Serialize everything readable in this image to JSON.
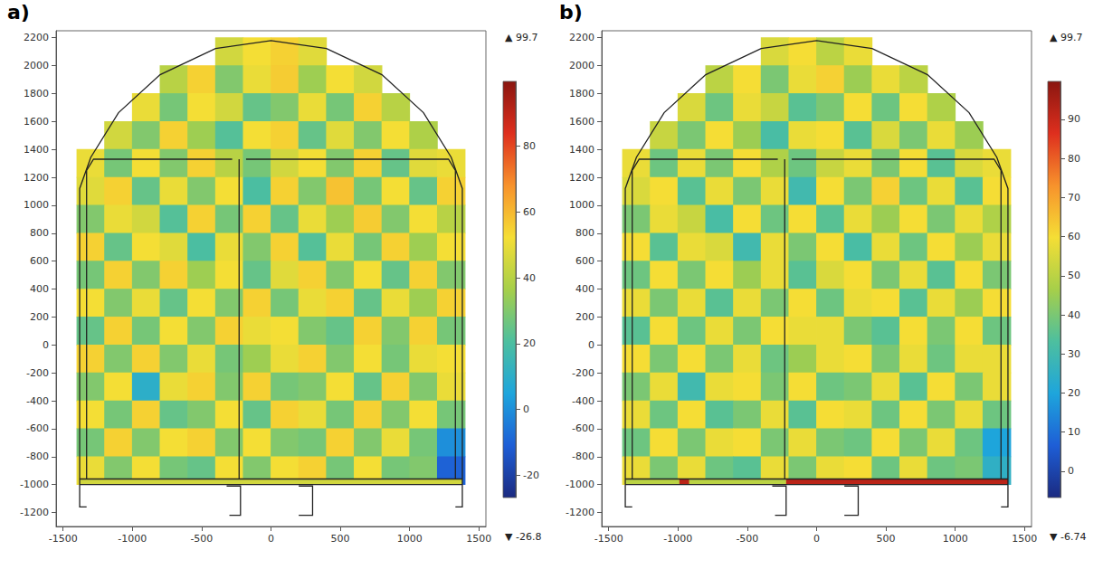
{
  "chart_data": [
    {
      "type": "heatmap",
      "title": "a)",
      "xlim": [
        -1550,
        1550
      ],
      "xticks": [
        -1500,
        -1000,
        -500,
        0,
        500,
        1000,
        1500
      ],
      "ylim": [
        -1300,
        2250
      ],
      "yticks": [
        -1200,
        -1000,
        -800,
        -600,
        -400,
        -200,
        0,
        200,
        400,
        600,
        800,
        1000,
        1200,
        1400,
        1600,
        1800,
        2000,
        2200
      ],
      "x": [
        -1300,
        -1100,
        -900,
        -700,
        -500,
        -300,
        -100,
        100,
        300,
        500,
        700,
        900,
        1100,
        1300
      ],
      "y": [
        2100,
        1900,
        1700,
        1500,
        1300,
        1100,
        900,
        700,
        500,
        300,
        100,
        -100,
        -300,
        -500,
        -700,
        -900
      ],
      "cells": [
        [
          null,
          null,
          null,
          null,
          null,
          45,
          52,
          55,
          48,
          null,
          null,
          null,
          null,
          null
        ],
        [
          null,
          null,
          null,
          40,
          55,
          30,
          50,
          56,
          35,
          52,
          45,
          null,
          null,
          null
        ],
        [
          null,
          null,
          50,
          28,
          52,
          45,
          25,
          30,
          50,
          28,
          55,
          40,
          null,
          null
        ],
        [
          null,
          45,
          30,
          55,
          35,
          22,
          52,
          55,
          25,
          48,
          30,
          52,
          38,
          null
        ],
        [
          50,
          28,
          52,
          30,
          55,
          40,
          28,
          45,
          52,
          30,
          55,
          25,
          48,
          50
        ],
        [
          48,
          55,
          25,
          50,
          30,
          52,
          20,
          55,
          30,
          58,
          28,
          52,
          25,
          55
        ],
        [
          30,
          50,
          45,
          22,
          55,
          28,
          55,
          25,
          50,
          35,
          56,
          30,
          52,
          40
        ],
        [
          55,
          25,
          52,
          48,
          20,
          50,
          30,
          55,
          22,
          50,
          28,
          55,
          35,
          52
        ],
        [
          28,
          55,
          30,
          55,
          35,
          52,
          25,
          48,
          55,
          30,
          52,
          25,
          55,
          30
        ],
        [
          52,
          30,
          50,
          25,
          52,
          30,
          55,
          28,
          50,
          55,
          25,
          50,
          35,
          55
        ],
        [
          25,
          55,
          28,
          52,
          30,
          55,
          50,
          52,
          30,
          25,
          55,
          30,
          55,
          28
        ],
        [
          55,
          30,
          55,
          30,
          50,
          28,
          35,
          50,
          55,
          30,
          52,
          28,
          50,
          52
        ],
        [
          30,
          52,
          10,
          50,
          55,
          30,
          55,
          28,
          30,
          52,
          25,
          55,
          30,
          50
        ],
        [
          52,
          28,
          55,
          25,
          30,
          52,
          25,
          55,
          50,
          28,
          55,
          30,
          52,
          28
        ],
        [
          28,
          55,
          30,
          52,
          55,
          30,
          52,
          30,
          28,
          55,
          30,
          50,
          28,
          0
        ],
        [
          50,
          30,
          52,
          28,
          25,
          52,
          30,
          52,
          55,
          28,
          52,
          28,
          30,
          -10
        ]
      ],
      "boundary": [
        {
          "x": [
            -1380,
            1380
          ],
          "y": [
            -1000,
            -960
          ],
          "value": 45
        }
      ],
      "colorbar": {
        "range": [
          -26.8,
          99.7
        ],
        "ticks": [
          -20,
          0,
          20,
          40,
          60,
          80
        ],
        "max_label": "▲ 99.7",
        "min_label": "▼ -26.8"
      },
      "structure": [
        [
          [
            -1380,
            -1000
          ],
          [
            -1380,
            1120
          ],
          [
            -1300,
            1343
          ],
          [
            -1100,
            1663
          ],
          [
            -800,
            1935
          ],
          [
            -400,
            2123
          ],
          [
            0,
            2180
          ],
          [
            400,
            2123
          ],
          [
            800,
            1935
          ],
          [
            1100,
            1663
          ],
          [
            1300,
            1343
          ],
          [
            1380,
            1120
          ],
          [
            1380,
            -1000
          ]
        ],
        [
          [
            -1330,
            -960
          ],
          [
            -1330,
            1250
          ],
          [
            -1280,
            1330
          ],
          [
            -280,
            1330
          ]
        ],
        [
          [
            -230,
            1330
          ],
          [
            -230,
            -960
          ]
        ],
        [
          [
            -180,
            1330
          ],
          [
            1280,
            1330
          ],
          [
            1330,
            1250
          ],
          [
            1330,
            -960
          ]
        ],
        [
          [
            -1380,
            -1000
          ],
          [
            1380,
            -1000
          ]
        ],
        [
          [
            -1380,
            -960
          ],
          [
            1380,
            -960
          ]
        ],
        [
          [
            -1380,
            -1000
          ],
          [
            -1380,
            -1160
          ],
          [
            -1330,
            -1160
          ]
        ],
        [
          [
            1380,
            -1000
          ],
          [
            1380,
            -1160
          ],
          [
            1330,
            -1160
          ]
        ],
        [
          [
            -320,
            -1010
          ],
          [
            -220,
            -1010
          ],
          [
            -220,
            -1220
          ],
          [
            -300,
            -1220
          ]
        ],
        [
          [
            200,
            -1010
          ],
          [
            300,
            -1010
          ],
          [
            300,
            -1220
          ],
          [
            200,
            -1220
          ]
        ]
      ]
    },
    {
      "type": "heatmap",
      "title": "b)",
      "xlim": [
        -1550,
        1550
      ],
      "xticks": [
        -1500,
        -1000,
        -500,
        0,
        500,
        1000,
        1500
      ],
      "ylim": [
        -1300,
        2250
      ],
      "yticks": [
        -1200,
        -1000,
        -800,
        -600,
        -400,
        -200,
        0,
        200,
        400,
        600,
        800,
        1000,
        1200,
        1400,
        1600,
        1800,
        2000,
        2200
      ],
      "x": [
        -1300,
        -1100,
        -900,
        -700,
        -500,
        -300,
        -100,
        100,
        300,
        500,
        700,
        900,
        1100,
        1300
      ],
      "y": [
        2100,
        1900,
        1700,
        1500,
        1300,
        1100,
        900,
        700,
        500,
        300,
        100,
        -100,
        -300,
        -500,
        -700,
        -900
      ],
      "cells": [
        [
          null,
          null,
          null,
          null,
          null,
          55,
          60,
          50,
          58,
          null,
          null,
          null,
          null,
          null
        ],
        [
          null,
          null,
          null,
          50,
          60,
          40,
          58,
          62,
          45,
          58,
          50,
          null,
          null,
          null
        ],
        [
          null,
          null,
          55,
          38,
          58,
          52,
          35,
          40,
          60,
          38,
          60,
          48,
          null,
          null
        ],
        [
          null,
          52,
          40,
          60,
          45,
          32,
          58,
          60,
          35,
          55,
          40,
          58,
          45,
          null
        ],
        [
          58,
          38,
          58,
          40,
          60,
          48,
          38,
          52,
          58,
          40,
          60,
          35,
          55,
          58
        ],
        [
          55,
          60,
          35,
          58,
          40,
          58,
          30,
          60,
          40,
          62,
          38,
          58,
          35,
          60
        ],
        [
          40,
          58,
          52,
          32,
          60,
          38,
          60,
          35,
          58,
          45,
          60,
          40,
          58,
          48
        ],
        [
          60,
          35,
          58,
          55,
          30,
          58,
          40,
          60,
          32,
          58,
          38,
          60,
          45,
          58
        ],
        [
          38,
          60,
          40,
          60,
          45,
          58,
          35,
          55,
          60,
          40,
          58,
          35,
          60,
          40
        ],
        [
          58,
          40,
          58,
          35,
          58,
          40,
          60,
          38,
          58,
          60,
          35,
          58,
          45,
          60
        ],
        [
          35,
          60,
          38,
          58,
          40,
          60,
          58,
          58,
          40,
          35,
          60,
          40,
          60,
          38
        ],
        [
          60,
          40,
          60,
          40,
          58,
          38,
          45,
          58,
          60,
          40,
          58,
          38,
          58,
          58
        ],
        [
          40,
          58,
          30,
          58,
          60,
          40,
          60,
          38,
          40,
          58,
          35,
          60,
          40,
          58
        ],
        [
          58,
          38,
          60,
          35,
          40,
          58,
          35,
          60,
          58,
          38,
          60,
          40,
          58,
          38
        ],
        [
          38,
          60,
          40,
          58,
          60,
          40,
          58,
          40,
          38,
          60,
          40,
          58,
          38,
          20
        ],
        [
          58,
          40,
          58,
          38,
          35,
          58,
          40,
          58,
          60,
          38,
          58,
          38,
          40,
          25
        ]
      ],
      "boundary": [
        {
          "x": [
            -1380,
            -220
          ],
          "y": [
            -1000,
            -960
          ],
          "value": 50
        },
        {
          "x": [
            -990,
            -920
          ],
          "y": [
            -1000,
            -960
          ],
          "value": 92
        },
        {
          "x": [
            -220,
            1380
          ],
          "y": [
            -1000,
            -960
          ],
          "value": 92
        }
      ],
      "colorbar": {
        "range": [
          -6.74,
          99.7
        ],
        "ticks": [
          0,
          10,
          20,
          30,
          40,
          50,
          60,
          70,
          80,
          90
        ],
        "max_label": "▲ 99.7",
        "min_label": "▼ -6.74"
      },
      "structure": [
        [
          [
            -1380,
            -1000
          ],
          [
            -1380,
            1120
          ],
          [
            -1300,
            1343
          ],
          [
            -1100,
            1663
          ],
          [
            -800,
            1935
          ],
          [
            -400,
            2123
          ],
          [
            0,
            2180
          ],
          [
            400,
            2123
          ],
          [
            800,
            1935
          ],
          [
            1100,
            1663
          ],
          [
            1300,
            1343
          ],
          [
            1380,
            1120
          ],
          [
            1380,
            -1000
          ]
        ],
        [
          [
            -1330,
            -960
          ],
          [
            -1330,
            1250
          ],
          [
            -1280,
            1330
          ],
          [
            -280,
            1330
          ]
        ],
        [
          [
            -230,
            1330
          ],
          [
            -230,
            -960
          ]
        ],
        [
          [
            -180,
            1330
          ],
          [
            1280,
            1330
          ],
          [
            1330,
            1250
          ],
          [
            1330,
            -960
          ]
        ],
        [
          [
            -1380,
            -1000
          ],
          [
            1380,
            -1000
          ]
        ],
        [
          [
            -1380,
            -960
          ],
          [
            1380,
            -960
          ]
        ],
        [
          [
            -1380,
            -1000
          ],
          [
            -1380,
            -1160
          ],
          [
            -1330,
            -1160
          ]
        ],
        [
          [
            1380,
            -1000
          ],
          [
            1380,
            -1160
          ],
          [
            1330,
            -1160
          ]
        ],
        [
          [
            -320,
            -1010
          ],
          [
            -220,
            -1010
          ],
          [
            -220,
            -1220
          ],
          [
            -300,
            -1220
          ]
        ],
        [
          [
            200,
            -1010
          ],
          [
            300,
            -1010
          ],
          [
            300,
            -1220
          ],
          [
            200,
            -1220
          ]
        ]
      ]
    }
  ]
}
